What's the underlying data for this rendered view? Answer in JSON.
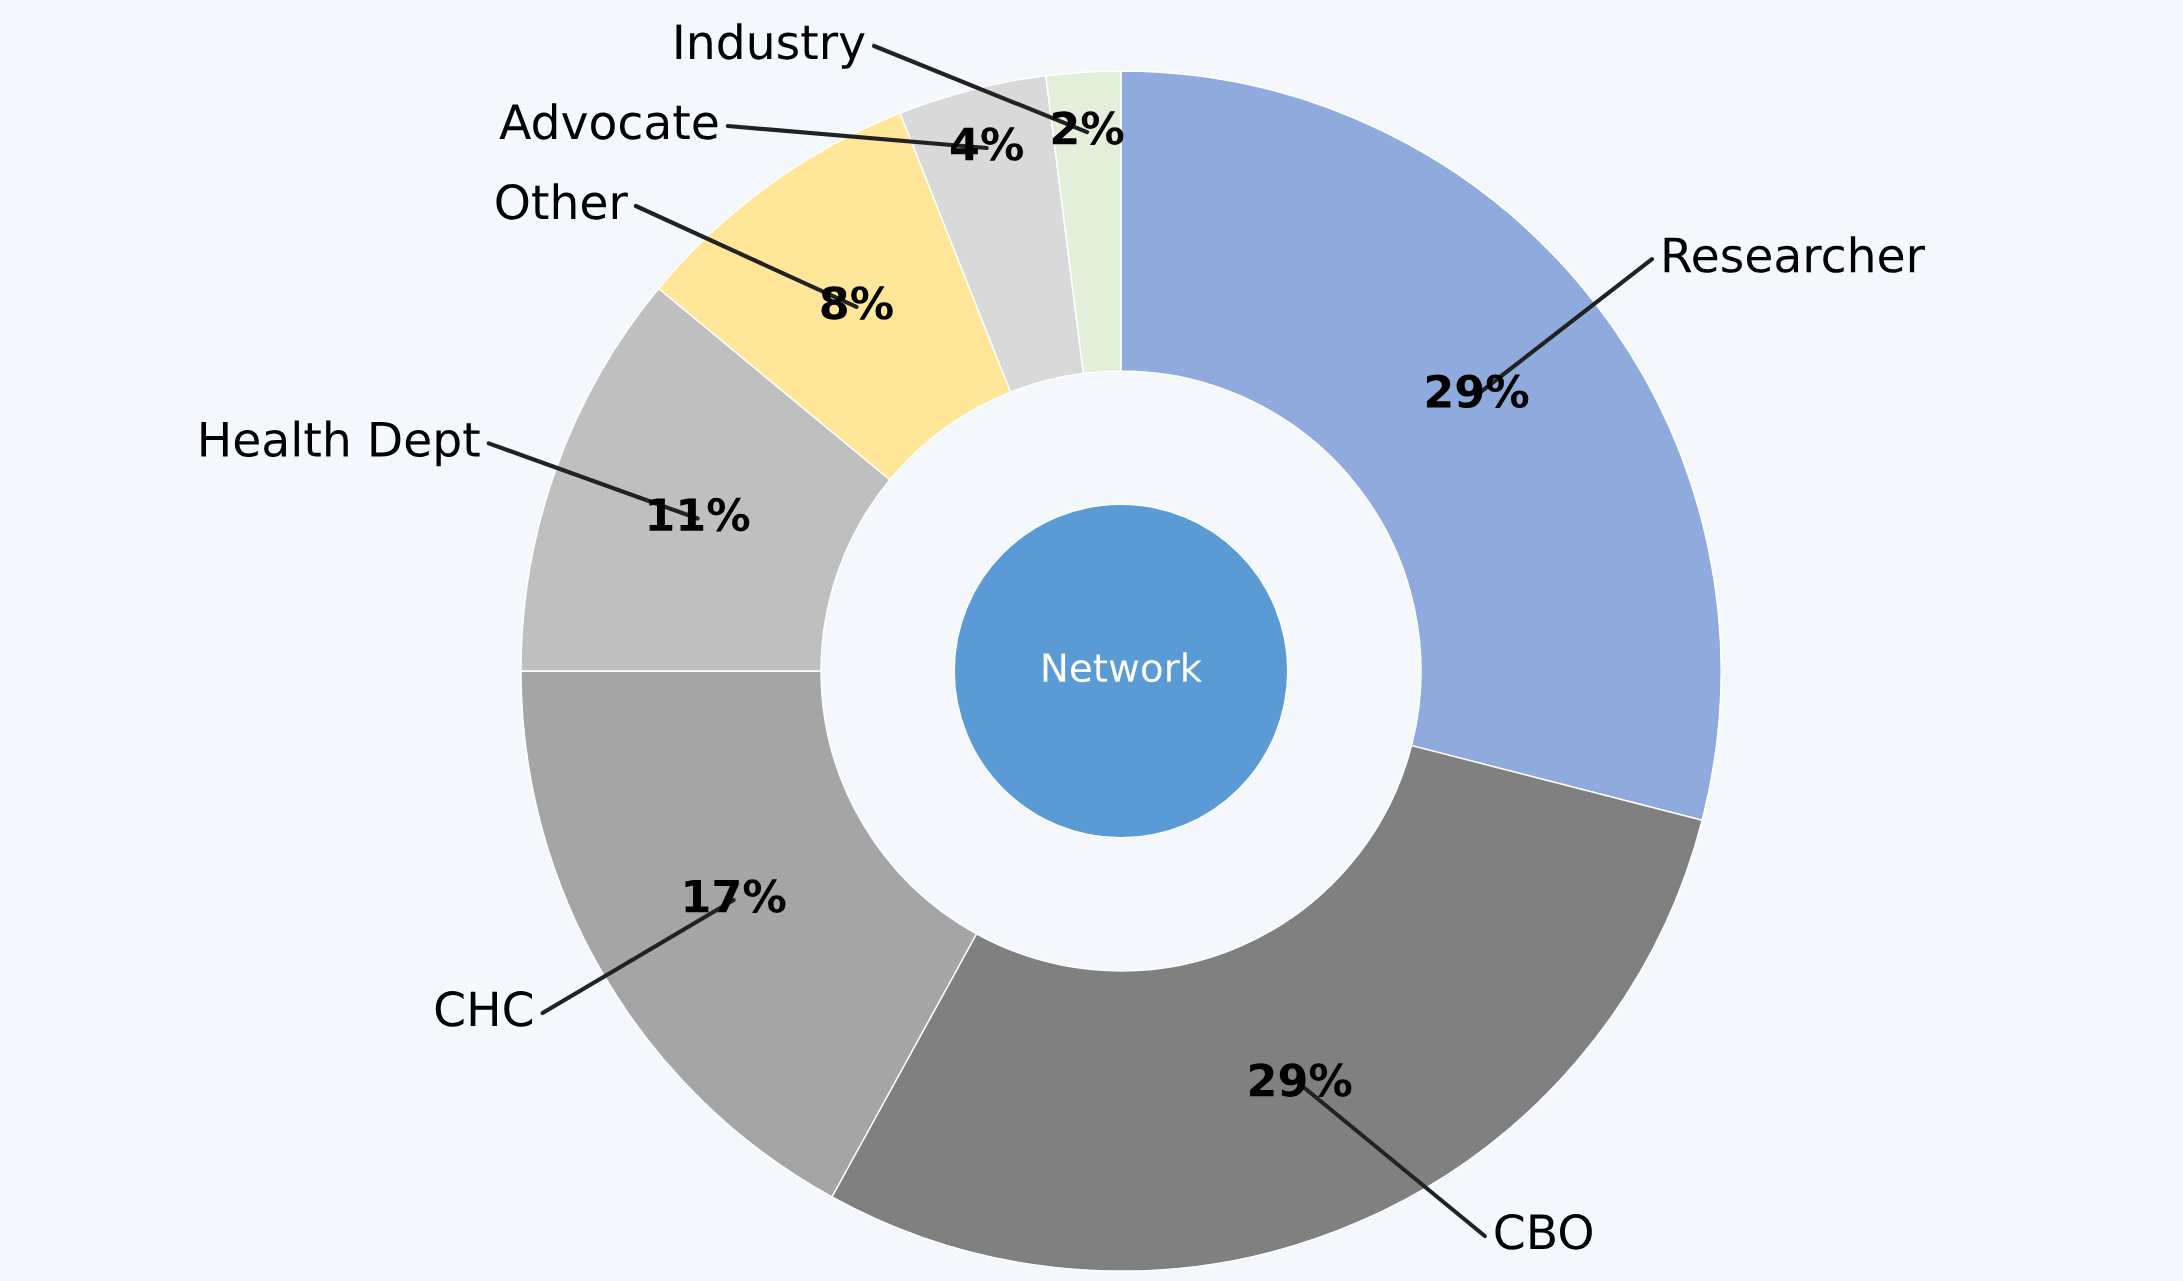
{
  "chart_data": {
    "type": "donut",
    "categories": [
      "Researcher",
      "CBO",
      "CHC",
      "Health Dept",
      "Other",
      "Advocate",
      "Industry"
    ],
    "values": [
      29,
      29,
      17,
      11,
      8,
      4,
      2
    ],
    "colors": [
      "#8faadc",
      "#808080",
      "#a5a5a5",
      "#bfbfbf",
      "#ffe699",
      "#d9d9d9",
      "#e2f0d9"
    ],
    "value_labels": [
      "29%",
      "29%",
      "17%",
      "11%",
      "8%",
      "4%",
      "2%"
    ],
    "annotations": [
      "Network"
    ]
  }
}
